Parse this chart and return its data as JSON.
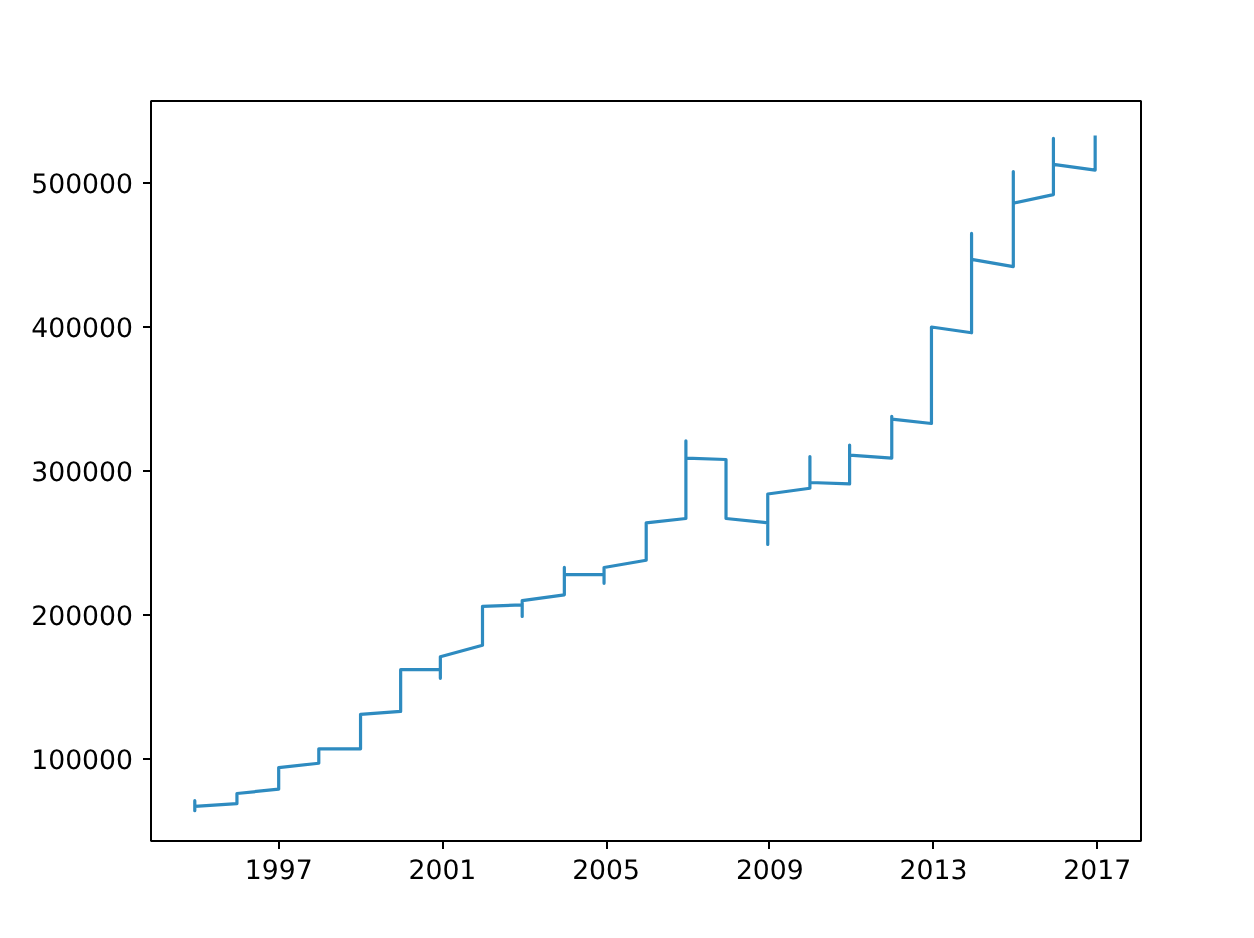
{
  "chart_data": {
    "type": "line",
    "xlim": [
      1993.88,
      2018.07
    ],
    "ylim": [
      43000,
      557000
    ],
    "xticks": [
      1997,
      2001,
      2005,
      2009,
      2013,
      2017
    ],
    "yticks": [
      100000,
      200000,
      300000,
      400000,
      500000
    ],
    "grid": false,
    "marker": "none",
    "line_style": "solid",
    "series": [
      {
        "color": "#2e8bc0",
        "x": [
          1994.95,
          1994.95,
          1994.95,
          1994.95,
          1995.98,
          1995.98,
          1997.0,
          1997.0,
          1997.98,
          1997.98,
          1997.98,
          1999.0,
          1999.0,
          1999.98,
          1999.98,
          2000.95,
          2000.95,
          2000.95,
          2001.98,
          2001.98,
          2002.95,
          2002.95,
          2002.95,
          2003.98,
          2003.98,
          2003.98,
          2004.95,
          2004.95,
          2004.95,
          2005.98,
          2005.98,
          2006.95,
          2006.95,
          2006.95,
          2007.93,
          2007.93,
          2007.93,
          2008.95,
          2008.95,
          2008.95,
          2009.98,
          2009.98,
          2009.98,
          2010.95,
          2010.95,
          2010.95,
          2011.98,
          2011.98,
          2011.98,
          2012.95,
          2012.95,
          2012.95,
          2012.95,
          2013.93,
          2013.93,
          2013.93,
          2014.95,
          2014.95,
          2014.95,
          2015.93,
          2015.93,
          2015.93,
          2016.95,
          2016.95
        ],
        "values": [
          67000,
          71000,
          64000,
          67000,
          69000,
          76000,
          79000,
          94000,
          97000,
          101000,
          107000,
          107000,
          131000,
          133000,
          162000,
          162000,
          156000,
          171000,
          179000,
          206000,
          207000,
          199000,
          210000,
          214000,
          233000,
          228000,
          228000,
          222000,
          233000,
          238000,
          264000,
          267000,
          321000,
          309000,
          308000,
          293000,
          267000,
          264000,
          249000,
          284000,
          288000,
          310000,
          292000,
          291000,
          318000,
          311000,
          309000,
          338000,
          336000,
          333000,
          351000,
          342000,
          400000,
          396000,
          465000,
          447000,
          442000,
          508000,
          486000,
          492000,
          531000,
          513000,
          509000,
          533000
        ]
      }
    ]
  }
}
